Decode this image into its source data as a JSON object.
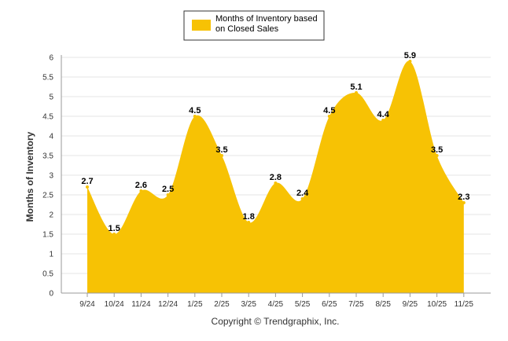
{
  "chart_data": {
    "type": "area",
    "categories": [
      "9/24",
      "10/24",
      "11/24",
      "12/24",
      "1/25",
      "2/25",
      "3/25",
      "4/25",
      "5/25",
      "6/25",
      "7/25",
      "8/25",
      "9/25",
      "10/25",
      "11/25"
    ],
    "series": [
      {
        "name": "Months of Inventory based on Closed Sales",
        "values": [
          2.7,
          1.5,
          2.6,
          2.5,
          4.5,
          3.5,
          1.8,
          2.8,
          2.4,
          4.5,
          5.1,
          4.4,
          5.9,
          3.5,
          2.3
        ],
        "color": "#F7C204"
      }
    ],
    "title": "",
    "xlabel": "",
    "ylabel": "Months of Inventory",
    "ylim": [
      0,
      6
    ],
    "yticks": [
      "0",
      "0.5",
      "1",
      "1.5",
      "2",
      "2.5",
      "3",
      "3.5",
      "4",
      "4.5",
      "5",
      "5.5",
      "6"
    ],
    "grid": true,
    "legend": {
      "position": "top-center",
      "line1": "Months of Inventory based",
      "line2": "on Closed Sales"
    }
  },
  "footer": {
    "copyright": "Copyright © Trendgraphix, Inc."
  },
  "colors": {
    "area": "#F7C204",
    "grid": "#e6e6e6",
    "axis": "#999999"
  }
}
